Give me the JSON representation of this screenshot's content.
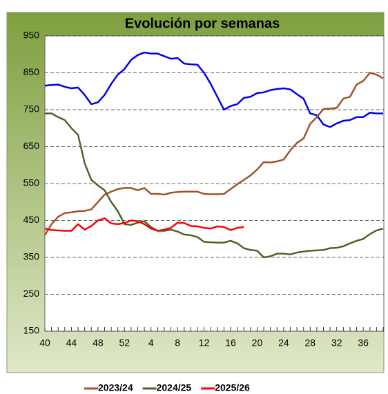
{
  "chart_data": {
    "type": "line",
    "title": "Evolución por semanas",
    "categories": [
      "40",
      null,
      null,
      null,
      "44",
      null,
      null,
      null,
      "48",
      null,
      null,
      null,
      "52",
      null,
      null,
      null,
      "4",
      null,
      null,
      null,
      "8",
      null,
      null,
      null,
      "12",
      null,
      null,
      null,
      "16",
      null,
      null,
      null,
      "20",
      null,
      null,
      null,
      "24",
      null,
      null,
      null,
      "28",
      null,
      null,
      null,
      "32",
      null,
      null,
      null,
      "36",
      null,
      null,
      null
    ],
    "ylim": [
      150,
      950
    ],
    "yticks": [
      150,
      250,
      350,
      450,
      550,
      650,
      750,
      850,
      950
    ],
    "grid": true,
    "series": [
      {
        "color": "#0000ee",
        "values": [
          815,
          817,
          818,
          812,
          808,
          810,
          790,
          765,
          770,
          790,
          820,
          845,
          860,
          885,
          898,
          905,
          902,
          902,
          895,
          888,
          890,
          875,
          873,
          872,
          850,
          820,
          785,
          750,
          760,
          765,
          782,
          785,
          795,
          797,
          803,
          806,
          808,
          805,
          792,
          780,
          740,
          735,
          710,
          703,
          713,
          720,
          722,
          730,
          730,
          742,
          740,
          740
        ]
      },
      {
        "name": "2023/24",
        "color": "#a0522d",
        "values": [
          410,
          440,
          460,
          470,
          472,
          475,
          476,
          480,
          500,
          520,
          528,
          535,
          538,
          538,
          532,
          538,
          522,
          522,
          520,
          525,
          527,
          528,
          528,
          528,
          522,
          521,
          521,
          522,
          535,
          548,
          560,
          572,
          588,
          608,
          607,
          610,
          615,
          640,
          660,
          672,
          712,
          730,
          752,
          753,
          755,
          780,
          785,
          818,
          828,
          850,
          845,
          835
        ]
      },
      {
        "name": "2024/25",
        "color": "#4f6228",
        "values": [
          740,
          740,
          730,
          722,
          700,
          682,
          605,
          560,
          545,
          532,
          500,
          475,
          440,
          438,
          444,
          448,
          432,
          422,
          422,
          425,
          420,
          412,
          410,
          405,
          392,
          391,
          390,
          390,
          395,
          388,
          375,
          370,
          368,
          350,
          353,
          360,
          360,
          358,
          363,
          366,
          368,
          369,
          370,
          375,
          376,
          380,
          388,
          395,
          400,
          413,
          423,
          428
        ]
      },
      {
        "name": "2025/26",
        "color": "#ff0000",
        "values": [
          428,
          424,
          423,
          422,
          422,
          440,
          425,
          435,
          450,
          456,
          442,
          440,
          443,
          450,
          448,
          440,
          428,
          422,
          425,
          430,
          444,
          443,
          435,
          434,
          430,
          428,
          434,
          432,
          424,
          430,
          432,
          null,
          null,
          null,
          null,
          null,
          null,
          null,
          null,
          null,
          null,
          null,
          null,
          null,
          null,
          null,
          null,
          null,
          null,
          null,
          null,
          null
        ]
      }
    ]
  }
}
